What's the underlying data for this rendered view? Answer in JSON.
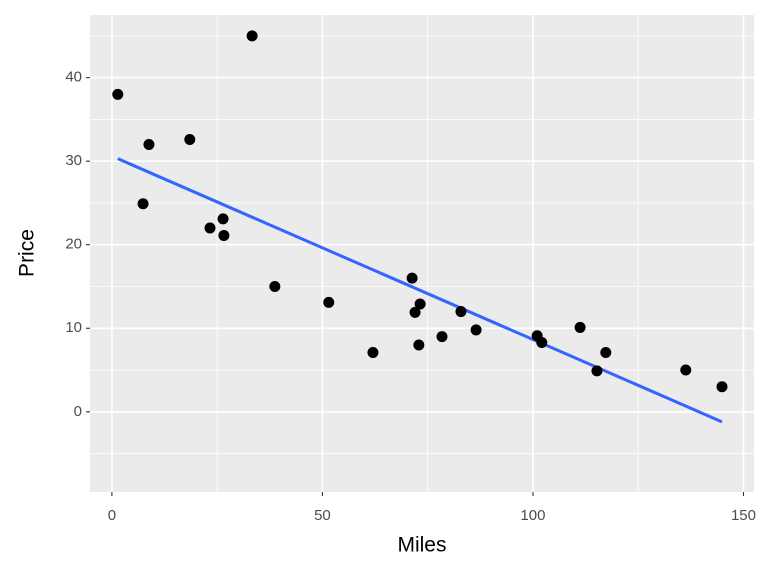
{
  "chart_data": {
    "type": "scatter",
    "x_label": "Miles",
    "y_label": "Price",
    "x": [
      1.4,
      8.8,
      7.4,
      18.5,
      33.3,
      23.3,
      26.4,
      26.6,
      38.7,
      51.5,
      62,
      71.3,
      72,
      73.2,
      72.9,
      78.4,
      82.9,
      86.5,
      101,
      102.1,
      111.2,
      115.2,
      117.3,
      136.3,
      144.9
    ],
    "values": [
      38,
      32,
      24.9,
      32.6,
      45,
      22,
      23.1,
      21.1,
      15,
      13.1,
      7.1,
      16,
      11.9,
      12.9,
      8,
      9,
      12,
      9.8,
      9.1,
      8.3,
      10.1,
      4.9,
      7.1,
      5,
      3
    ],
    "color": "#000000",
    "fit": {
      "x": [
        1.4,
        144.9
      ],
      "values": [
        30.3,
        -1.2
      ],
      "color": "#3366ff"
    },
    "xlim": [
      -5.2,
      152.5
    ],
    "ylim": [
      -9.6,
      47.5
    ],
    "xticks": [
      0,
      50,
      100,
      150
    ],
    "yticks": [
      0,
      10,
      20,
      30,
      40
    ],
    "grid": true
  }
}
